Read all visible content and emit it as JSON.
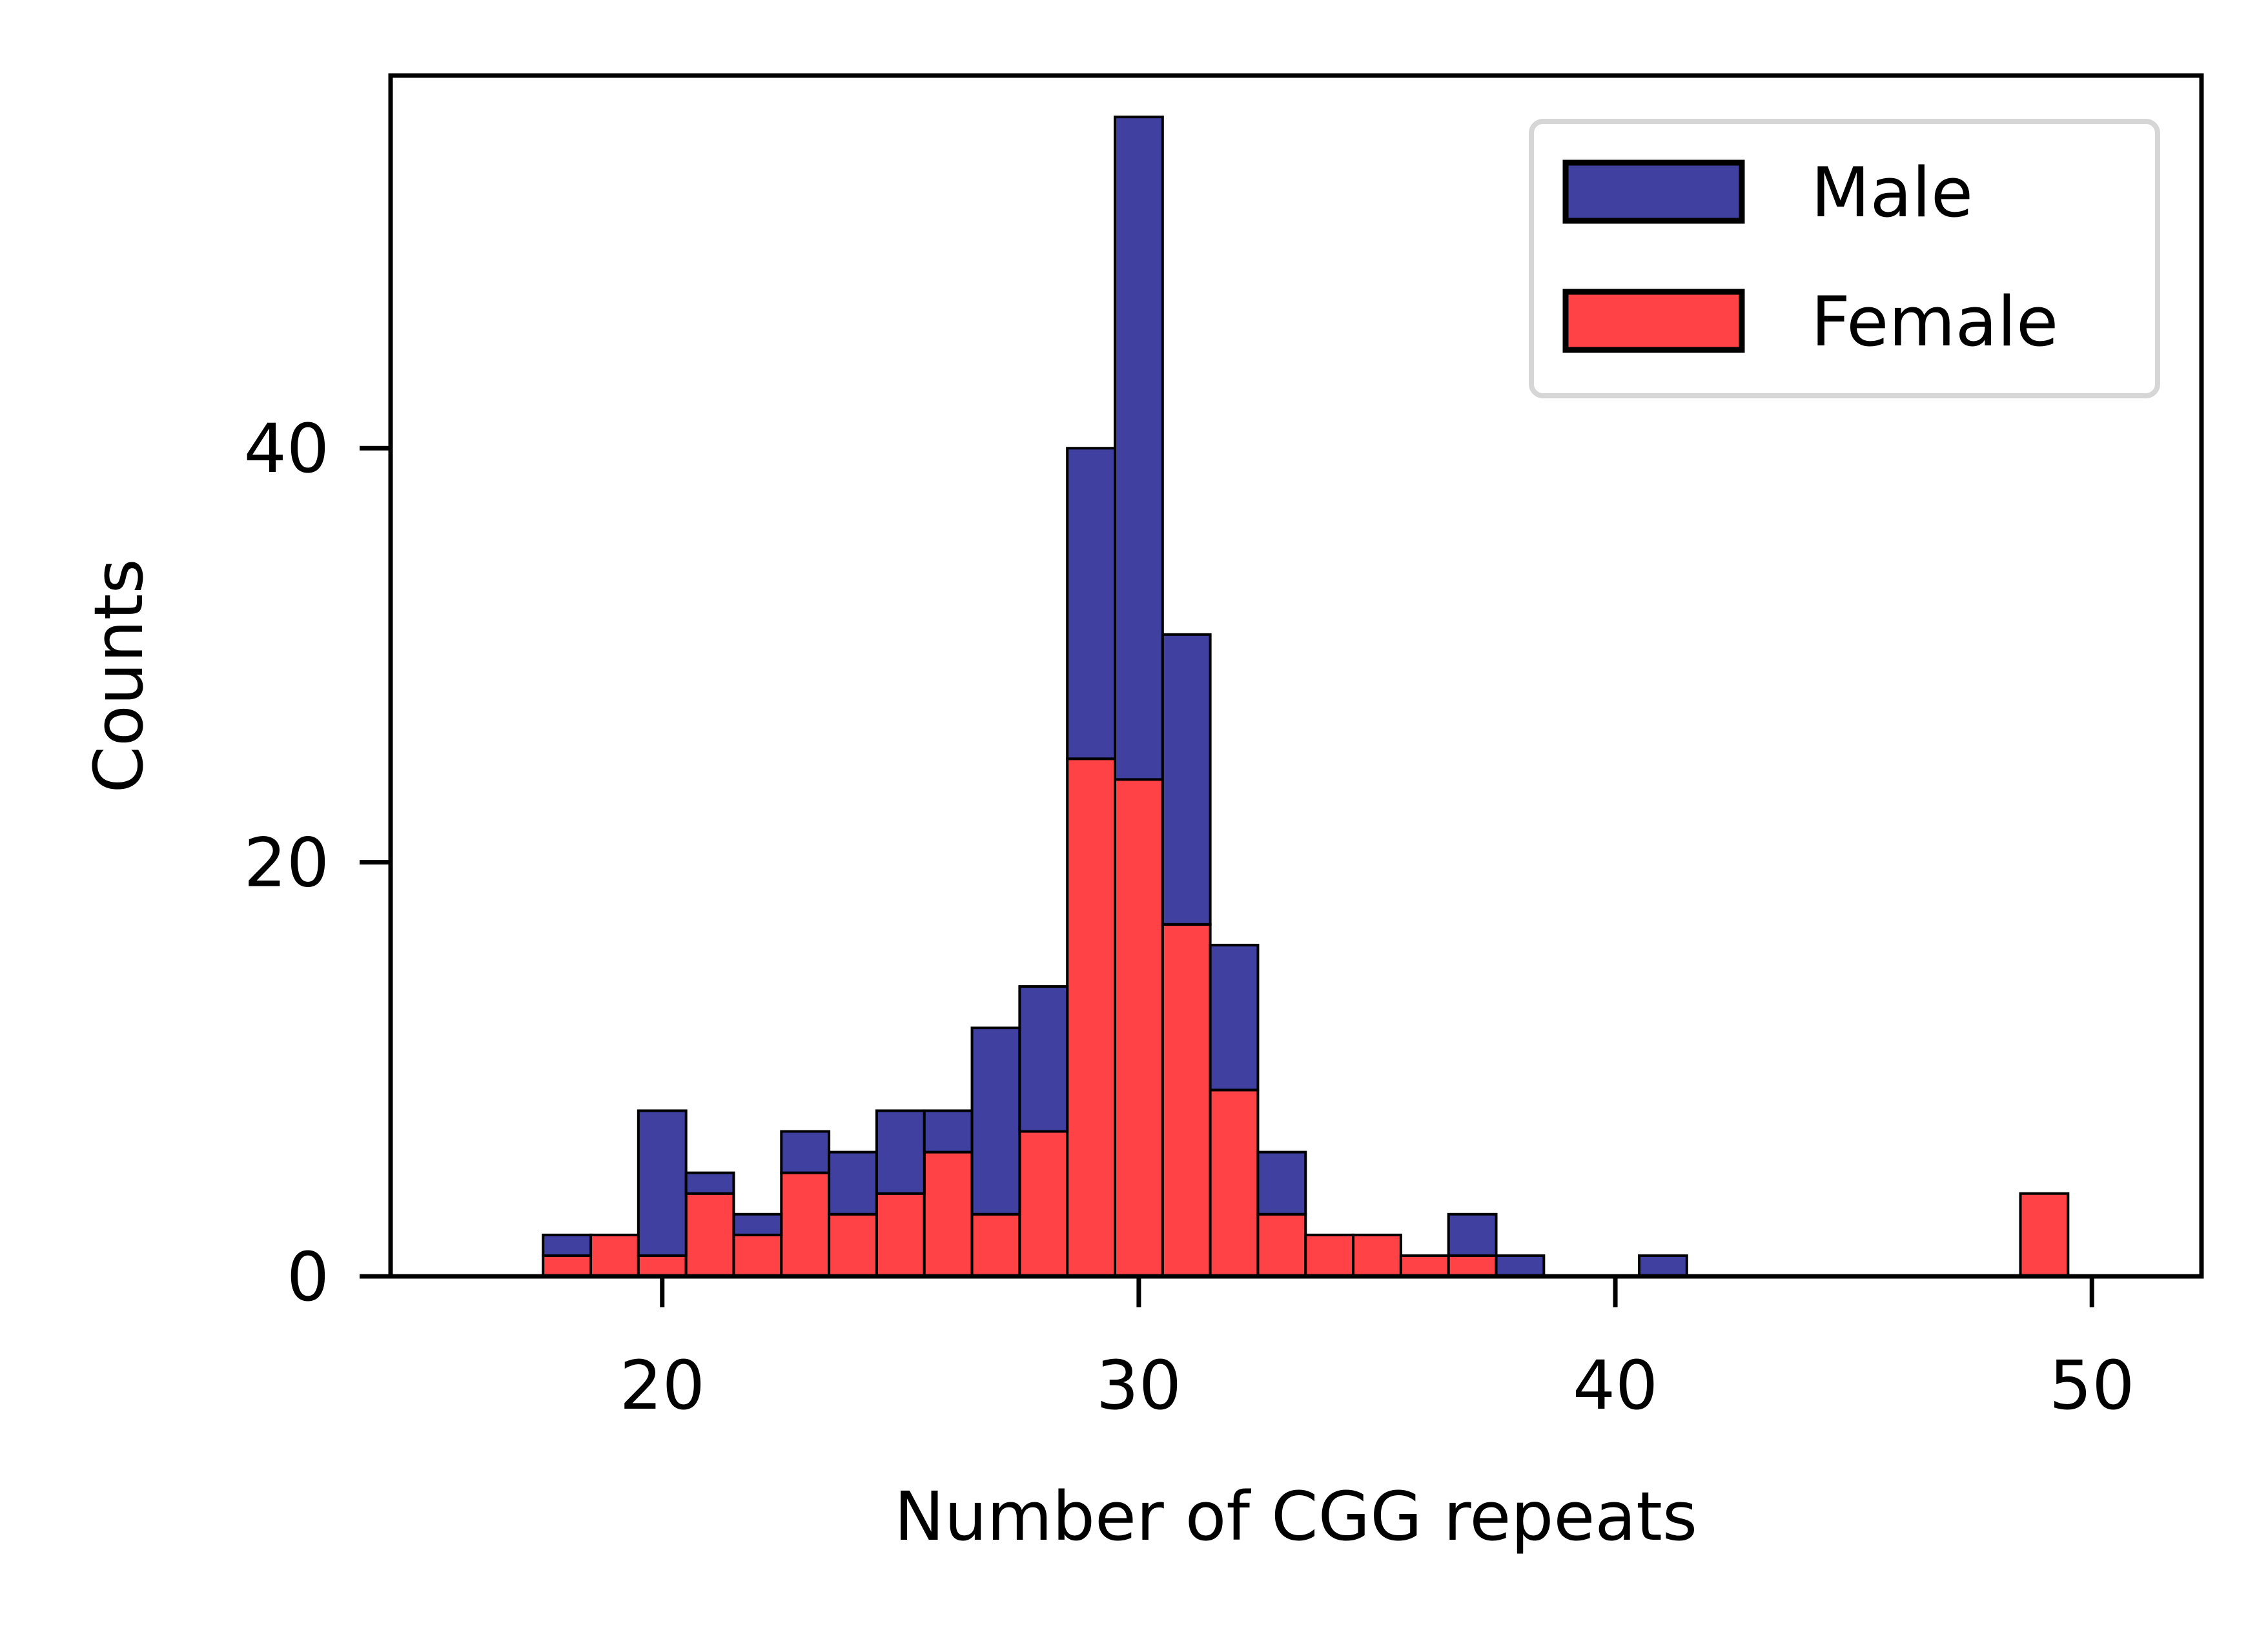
{
  "chart_data": {
    "type": "bar",
    "stacked": true,
    "title": "",
    "xlabel": "Number of CGG repeats",
    "ylabel": "Counts",
    "xlim": [
      14.3,
      52.3
    ],
    "ylim": [
      0,
      58
    ],
    "xticks": [
      20,
      30,
      40,
      50
    ],
    "yticks": [
      0,
      20,
      40
    ],
    "grid": false,
    "legend": "top-right",
    "bin_starts": [
      17.5,
      18.5,
      19.5,
      20.5,
      21.5,
      22.5,
      23.5,
      24.5,
      25.5,
      26.5,
      27.5,
      28.5,
      29.5,
      30.5,
      31.5,
      32.5,
      33.5,
      34.5,
      35.5,
      36.5,
      37.5,
      38.5,
      39.5,
      40.5,
      41.5,
      42.5,
      43.5,
      44.5,
      45.5,
      46.5,
      47.5,
      48.5,
      49.5
    ],
    "bin_width": 1,
    "series": [
      {
        "name": "Female",
        "color": "#ff4245",
        "values": [
          1,
          2,
          1,
          4,
          2,
          5,
          3,
          4,
          6,
          3,
          7,
          25,
          24,
          17,
          9,
          3,
          2,
          2,
          1,
          1,
          0,
          0,
          0,
          0,
          0,
          0,
          0,
          0,
          0,
          0,
          0,
          4,
          0
        ]
      },
      {
        "name": "Male",
        "color": "#4040a1",
        "values": [
          1,
          0,
          7,
          1,
          1,
          2,
          3,
          4,
          2,
          9,
          7,
          15,
          32,
          14,
          7,
          3,
          0,
          0,
          0,
          2,
          1,
          0,
          0,
          1,
          0,
          0,
          0,
          0,
          0,
          0,
          0,
          0,
          0
        ]
      }
    ],
    "legend_order": [
      "Male",
      "Female"
    ]
  }
}
